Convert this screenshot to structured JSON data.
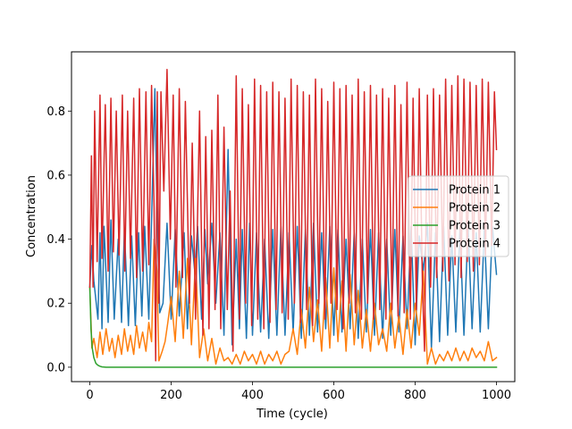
{
  "chart_data": {
    "type": "line",
    "title": "",
    "xlabel": "Time (cycle)",
    "ylabel": "Concentration",
    "xlim": [
      -45,
      1045
    ],
    "ylim": [
      -0.045,
      0.985
    ],
    "xticks": [
      0,
      200,
      400,
      600,
      800,
      1000
    ],
    "xtick_labels": [
      "0",
      "200",
      "400",
      "600",
      "800",
      "1000"
    ],
    "yticks": [
      0.0,
      0.2,
      0.4,
      0.6,
      0.8
    ],
    "ytick_labels": [
      "0.0",
      "0.2",
      "0.4",
      "0.6",
      "0.8"
    ],
    "grid": false,
    "legend_position": "center-right",
    "series": [
      {
        "name": "Protein 1",
        "color": "#1f77b4",
        "x": [
          0,
          5,
          10,
          20,
          25,
          30,
          35,
          45,
          52,
          60,
          70,
          78,
          85,
          95,
          103,
          112,
          120,
          128,
          135,
          145,
          152,
          160,
          165,
          172,
          180,
          190,
          200,
          210,
          220,
          232,
          240,
          250,
          258,
          265,
          275,
          283,
          290,
          300,
          310,
          320,
          330,
          340,
          350,
          360,
          368,
          375,
          385,
          393,
          400,
          410,
          420,
          430,
          440,
          450,
          460,
          470,
          480,
          490,
          500,
          510,
          520,
          530,
          540,
          550,
          560,
          570,
          580,
          590,
          600,
          610,
          620,
          630,
          640,
          650,
          660,
          670,
          680,
          690,
          700,
          710,
          720,
          730,
          740,
          750,
          760,
          770,
          780,
          790,
          800,
          810,
          820,
          830,
          840,
          850,
          860,
          870,
          880,
          890,
          900,
          910,
          920,
          930,
          940,
          950,
          960,
          970,
          980,
          990,
          1000
        ],
        "y": [
          0.25,
          0.38,
          0.27,
          0.15,
          0.42,
          0.12,
          0.44,
          0.14,
          0.46,
          0.15,
          0.4,
          0.14,
          0.43,
          0.13,
          0.41,
          0.13,
          0.42,
          0.16,
          0.44,
          0.15,
          0.46,
          0.87,
          0.5,
          0.17,
          0.2,
          0.45,
          0.15,
          0.43,
          0.16,
          0.42,
          0.12,
          0.41,
          0.3,
          0.44,
          0.15,
          0.43,
          0.26,
          0.45,
          0.2,
          0.42,
          0.1,
          0.68,
          0.07,
          0.4,
          0.12,
          0.43,
          0.09,
          0.45,
          0.1,
          0.42,
          0.11,
          0.4,
          0.09,
          0.43,
          0.1,
          0.44,
          0.1,
          0.42,
          0.11,
          0.44,
          0.09,
          0.43,
          0.1,
          0.45,
          0.11,
          0.42,
          0.12,
          0.44,
          0.1,
          0.43,
          0.11,
          0.4,
          0.12,
          0.42,
          0.09,
          0.4,
          0.11,
          0.43,
          0.1,
          0.42,
          0.09,
          0.4,
          0.1,
          0.43,
          0.11,
          0.41,
          0.12,
          0.44,
          0.07,
          0.41,
          0.3,
          0.45,
          0.06,
          0.42,
          0.08,
          0.44,
          0.1,
          0.41,
          0.11,
          0.43,
          0.1,
          0.44,
          0.12,
          0.42,
          0.11,
          0.43,
          0.12,
          0.44,
          0.29
        ]
      },
      {
        "name": "Protein 2",
        "color": "#ff7f0e",
        "x": [
          0,
          5,
          10,
          18,
          25,
          32,
          40,
          48,
          55,
          62,
          70,
          78,
          85,
          93,
          100,
          108,
          115,
          122,
          130,
          138,
          145,
          152,
          158,
          165,
          170,
          178,
          185,
          192,
          200,
          210,
          220,
          230,
          240,
          250,
          260,
          270,
          280,
          290,
          300,
          310,
          320,
          330,
          340,
          350,
          360,
          370,
          380,
          390,
          400,
          410,
          420,
          430,
          440,
          450,
          460,
          470,
          480,
          490,
          500,
          510,
          520,
          530,
          540,
          550,
          560,
          570,
          580,
          590,
          600,
          610,
          620,
          630,
          640,
          650,
          660,
          670,
          680,
          690,
          700,
          710,
          720,
          730,
          740,
          750,
          760,
          770,
          780,
          790,
          800,
          810,
          820,
          830,
          840,
          850,
          860,
          870,
          880,
          890,
          900,
          910,
          920,
          930,
          940,
          950,
          960,
          970,
          980,
          990,
          1000
        ],
        "y": [
          0.25,
          0.06,
          0.09,
          0.03,
          0.11,
          0.04,
          0.12,
          0.05,
          0.09,
          0.03,
          0.1,
          0.04,
          0.12,
          0.05,
          0.1,
          0.04,
          0.13,
          0.06,
          0.11,
          0.05,
          0.14,
          0.08,
          0.4,
          0.3,
          0.02,
          0.05,
          0.08,
          0.14,
          0.22,
          0.08,
          0.3,
          0.09,
          0.34,
          0.07,
          0.34,
          0.03,
          0.12,
          0.02,
          0.09,
          0.01,
          0.06,
          0.02,
          0.03,
          0.01,
          0.04,
          0.01,
          0.05,
          0.02,
          0.04,
          0.01,
          0.05,
          0.01,
          0.04,
          0.02,
          0.05,
          0.01,
          0.04,
          0.05,
          0.12,
          0.04,
          0.18,
          0.06,
          0.25,
          0.08,
          0.21,
          0.05,
          0.28,
          0.06,
          0.31,
          0.08,
          0.27,
          0.05,
          0.29,
          0.07,
          0.24,
          0.06,
          0.18,
          0.05,
          0.2,
          0.07,
          0.12,
          0.05,
          0.2,
          0.06,
          0.16,
          0.04,
          0.18,
          0.06,
          0.2,
          0.1,
          0.3,
          0.01,
          0.06,
          0.01,
          0.04,
          0.02,
          0.05,
          0.02,
          0.06,
          0.02,
          0.05,
          0.02,
          0.06,
          0.03,
          0.05,
          0.02,
          0.08,
          0.02,
          0.03
        ]
      },
      {
        "name": "Protein 3",
        "color": "#2ca02c",
        "x": [
          0,
          3,
          6,
          10,
          15,
          20,
          25,
          30,
          40,
          60,
          100,
          200,
          400,
          600,
          800,
          1000
        ],
        "y": [
          0.25,
          0.12,
          0.06,
          0.03,
          0.012,
          0.006,
          0.003,
          0.001,
          0.0,
          0.0,
          0.0,
          0.0,
          0.0,
          0.0,
          0.0,
          0.0
        ]
      },
      {
        "name": "Protein 4",
        "color": "#d62728",
        "x": [
          0,
          4,
          8,
          12,
          18,
          25,
          30,
          38,
          45,
          52,
          58,
          65,
          72,
          80,
          86,
          93,
          100,
          108,
          115,
          122,
          130,
          138,
          145,
          152,
          158,
          162,
          166,
          170,
          175,
          182,
          190,
          198,
          205,
          212,
          220,
          228,
          235,
          245,
          252,
          260,
          270,
          278,
          285,
          293,
          300,
          308,
          315,
          322,
          330,
          338,
          345,
          352,
          360,
          368,
          375,
          383,
          390,
          398,
          405,
          413,
          420,
          428,
          435,
          443,
          450,
          458,
          465,
          473,
          480,
          488,
          495,
          503,
          510,
          518,
          525,
          533,
          540,
          548,
          555,
          563,
          570,
          578,
          585,
          593,
          600,
          608,
          615,
          623,
          630,
          638,
          645,
          653,
          660,
          668,
          675,
          683,
          690,
          698,
          705,
          713,
          720,
          728,
          735,
          743,
          750,
          758,
          765,
          773,
          780,
          788,
          795,
          803,
          810,
          818,
          823,
          830,
          838,
          845,
          853,
          860,
          868,
          875,
          883,
          890,
          898,
          905,
          913,
          920,
          928,
          935,
          943,
          950,
          958,
          965,
          973,
          980,
          988,
          995,
          1000
        ],
        "y": [
          0.25,
          0.66,
          0.25,
          0.8,
          0.33,
          0.85,
          0.34,
          0.82,
          0.3,
          0.84,
          0.36,
          0.8,
          0.35,
          0.85,
          0.3,
          0.8,
          0.34,
          0.84,
          0.28,
          0.87,
          0.3,
          0.86,
          0.32,
          0.88,
          0.5,
          0.02,
          0.86,
          0.2,
          0.86,
          0.55,
          0.93,
          0.4,
          0.85,
          0.25,
          0.87,
          0.28,
          0.83,
          0.2,
          0.7,
          0.15,
          0.8,
          0.1,
          0.72,
          0.12,
          0.74,
          0.18,
          0.85,
          0.12,
          0.75,
          0.18,
          0.55,
          0.05,
          0.91,
          0.15,
          0.87,
          0.2,
          0.82,
          0.13,
          0.9,
          0.15,
          0.88,
          0.12,
          0.86,
          0.14,
          0.89,
          0.18,
          0.86,
          0.17,
          0.84,
          0.15,
          0.9,
          0.2,
          0.88,
          0.14,
          0.86,
          0.18,
          0.85,
          0.13,
          0.9,
          0.2,
          0.87,
          0.15,
          0.83,
          0.2,
          0.89,
          0.18,
          0.87,
          0.12,
          0.88,
          0.2,
          0.85,
          0.17,
          0.9,
          0.15,
          0.86,
          0.2,
          0.88,
          0.15,
          0.85,
          0.18,
          0.87,
          0.15,
          0.84,
          0.18,
          0.88,
          0.16,
          0.82,
          0.17,
          0.89,
          0.15,
          0.84,
          0.18,
          0.87,
          0.25,
          0.05,
          0.85,
          0.25,
          0.87,
          0.28,
          0.85,
          0.3,
          0.9,
          0.27,
          0.88,
          0.32,
          0.91,
          0.28,
          0.9,
          0.33,
          0.89,
          0.3,
          0.88,
          0.32,
          0.9,
          0.35,
          0.89,
          0.38,
          0.86,
          0.68
        ]
      }
    ]
  }
}
